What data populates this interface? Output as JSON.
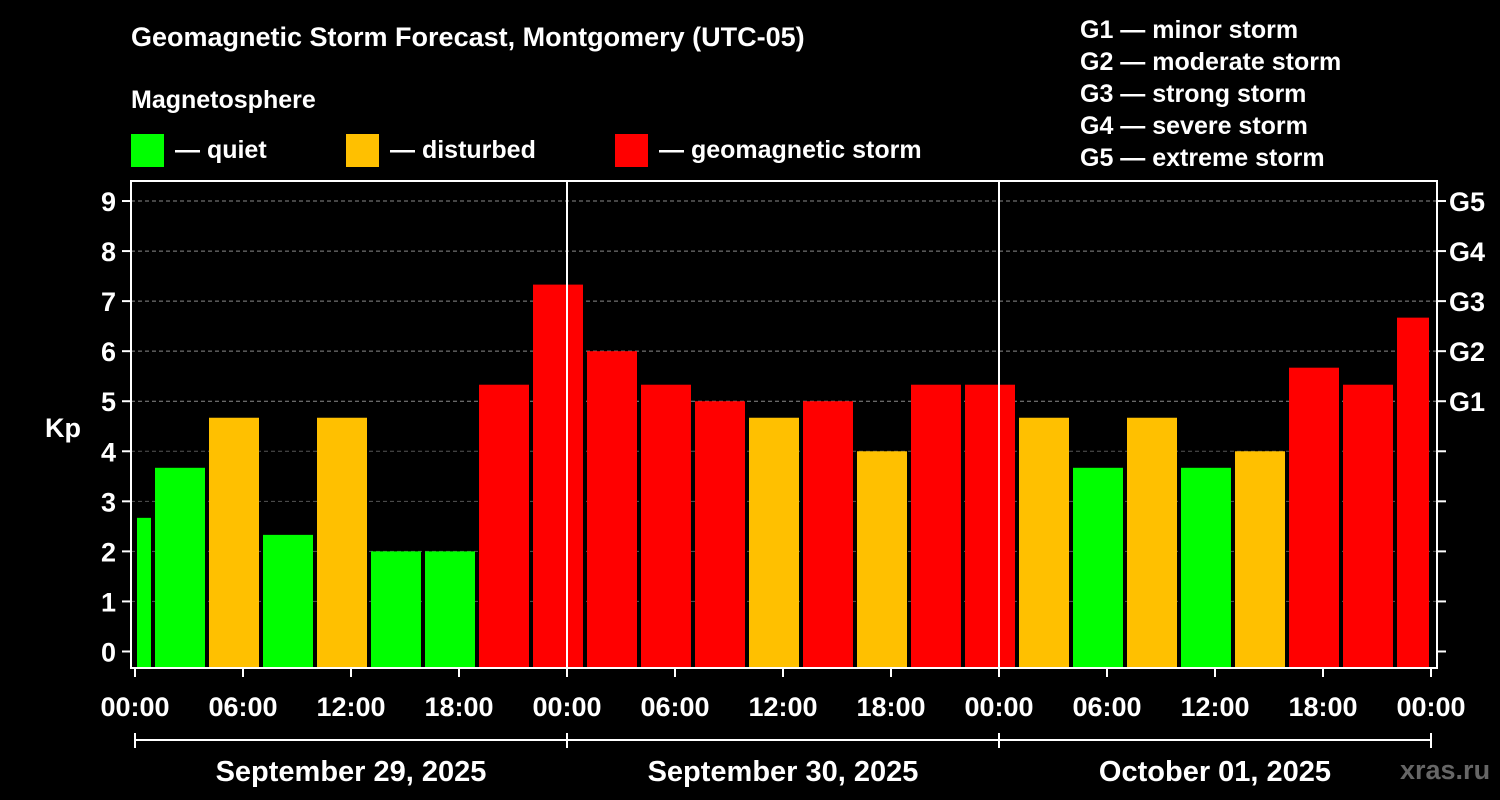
{
  "title": "Geomagnetic Storm Forecast, Montgomery (UTC-05)",
  "magnetosphere": {
    "heading": "Magnetosphere",
    "items": [
      {
        "label": "— quiet",
        "color": "#00ff00"
      },
      {
        "label": "— disturbed",
        "color": "#ffc000"
      },
      {
        "label": "— geomagnetic storm",
        "color": "#ff0000"
      }
    ]
  },
  "storm_levels": [
    "G1 — minor storm",
    "G2 — moderate storm",
    "G3 — strong storm",
    "G4 — severe storm",
    "G5 — extreme storm"
  ],
  "watermark": "xras.ru",
  "chart_data": {
    "type": "bar",
    "title": "Geomagnetic Storm Forecast, Montgomery (UTC-05)",
    "ylabel": "Kp",
    "ylim": [
      -0.33,
      9.4
    ],
    "y_ticks": [
      "0",
      "1",
      "2",
      "3",
      "4",
      "5",
      "6",
      "7",
      "8",
      "9"
    ],
    "right_axis_labels": [
      {
        "label": "G1",
        "kp": 5
      },
      {
        "label": "G2",
        "kp": 6
      },
      {
        "label": "G3",
        "kp": 7
      },
      {
        "label": "G4",
        "kp": 8
      },
      {
        "label": "G5",
        "kp": 9
      }
    ],
    "x_range_hours": [
      0,
      72
    ],
    "x_tick_labels": [
      "00:00",
      "06:00",
      "12:00",
      "18:00",
      "00:00",
      "06:00",
      "12:00",
      "18:00",
      "00:00",
      "06:00",
      "12:00",
      "18:00",
      "00:00"
    ],
    "days": [
      "September 29, 2025",
      "September 30, 2025",
      "October 01, 2025"
    ],
    "grid": true,
    "colors": {
      "quiet": "#00ff00",
      "disturbed": "#ffc000",
      "storm": "#ff0000"
    },
    "bars": [
      {
        "start": 0,
        "end": 1,
        "kp": 2.67,
        "level": "quiet"
      },
      {
        "start": 1,
        "end": 4,
        "kp": 3.67,
        "level": "quiet"
      },
      {
        "start": 4,
        "end": 7,
        "kp": 4.67,
        "level": "disturbed"
      },
      {
        "start": 7,
        "end": 10,
        "kp": 2.33,
        "level": "quiet"
      },
      {
        "start": 10,
        "end": 13,
        "kp": 4.67,
        "level": "disturbed"
      },
      {
        "start": 13,
        "end": 16,
        "kp": 2.0,
        "level": "quiet"
      },
      {
        "start": 16,
        "end": 19,
        "kp": 2.0,
        "level": "quiet"
      },
      {
        "start": 19,
        "end": 22,
        "kp": 5.33,
        "level": "storm"
      },
      {
        "start": 22,
        "end": 25,
        "kp": 7.33,
        "level": "storm"
      },
      {
        "start": 25,
        "end": 28,
        "kp": 6.0,
        "level": "storm"
      },
      {
        "start": 28,
        "end": 31,
        "kp": 5.33,
        "level": "storm"
      },
      {
        "start": 31,
        "end": 34,
        "kp": 5.0,
        "level": "storm"
      },
      {
        "start": 34,
        "end": 37,
        "kp": 4.67,
        "level": "disturbed"
      },
      {
        "start": 37,
        "end": 40,
        "kp": 5.0,
        "level": "storm"
      },
      {
        "start": 40,
        "end": 43,
        "kp": 4.0,
        "level": "disturbed"
      },
      {
        "start": 43,
        "end": 46,
        "kp": 5.33,
        "level": "storm"
      },
      {
        "start": 46,
        "end": 49,
        "kp": 5.33,
        "level": "storm"
      },
      {
        "start": 49,
        "end": 52,
        "kp": 4.67,
        "level": "disturbed"
      },
      {
        "start": 52,
        "end": 55,
        "kp": 3.67,
        "level": "quiet"
      },
      {
        "start": 55,
        "end": 58,
        "kp": 4.67,
        "level": "disturbed"
      },
      {
        "start": 58,
        "end": 61,
        "kp": 3.67,
        "level": "quiet"
      },
      {
        "start": 61,
        "end": 64,
        "kp": 4.0,
        "level": "disturbed"
      },
      {
        "start": 64,
        "end": 67,
        "kp": 5.67,
        "level": "storm"
      },
      {
        "start": 67,
        "end": 70,
        "kp": 5.33,
        "level": "storm"
      },
      {
        "start": 70,
        "end": 72,
        "kp": 6.67,
        "level": "storm"
      }
    ]
  }
}
